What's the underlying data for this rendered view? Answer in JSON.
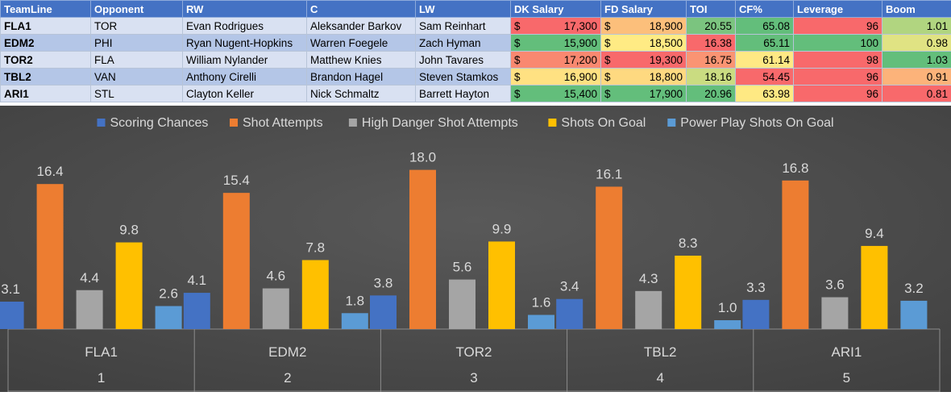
{
  "table": {
    "headers": [
      "TeamLine",
      "Opponent",
      "RW",
      "C",
      "LW",
      "DK Salary",
      "FD Salary",
      "TOI",
      "CF%",
      "Leverage",
      "Boom"
    ],
    "currency_symbol": "$",
    "rows": [
      {
        "teamline": "FLA1",
        "opponent": "TOR",
        "rw": "Evan Rodrigues",
        "c": "Aleksander Barkov",
        "lw": "Sam Reinhart",
        "dk": "17,300",
        "fd": "18,900",
        "toi": "20.55",
        "cf": "65.08",
        "leverage": "96",
        "boom": "1.01"
      },
      {
        "teamline": "EDM2",
        "opponent": "PHI",
        "rw": "Ryan Nugent-Hopkins",
        "c": "Warren Foegele",
        "lw": "Zach Hyman",
        "dk": "15,900",
        "fd": "18,500",
        "toi": "16.38",
        "cf": "65.11",
        "leverage": "100",
        "boom": "0.98"
      },
      {
        "teamline": "TOR2",
        "opponent": "FLA",
        "rw": "William Nylander",
        "c": "Matthew Knies",
        "lw": "John Tavares",
        "dk": "17,200",
        "fd": "19,300",
        "toi": "16.75",
        "cf": "61.14",
        "leverage": "98",
        "boom": "1.03"
      },
      {
        "teamline": "TBL2",
        "opponent": "VAN",
        "rw": "Anthony Cirelli",
        "c": "Brandon Hagel",
        "lw": "Steven Stamkos",
        "dk": "16,900",
        "fd": "18,800",
        "toi": "18.16",
        "cf": "54.45",
        "leverage": "96",
        "boom": "0.91"
      },
      {
        "teamline": "ARI1",
        "opponent": "STL",
        "rw": "Clayton Keller",
        "c": "Nick Schmaltz",
        "lw": "Barrett Hayton",
        "dk": "15,400",
        "fd": "17,900",
        "toi": "20.96",
        "cf": "63.98",
        "leverage": "96",
        "boom": "0.81"
      }
    ],
    "cell_colors": [
      {
        "dk": "#f8696b",
        "fd": "#fcbf7b",
        "toi": "#7bc47f",
        "cf": "#63be7b",
        "leverage": "#f8696b",
        "boom": "#b1d580"
      },
      {
        "dk": "#63be7b",
        "fd": "#ffeb84",
        "toi": "#f8696b",
        "cf": "#63be7b",
        "leverage": "#63be7b",
        "boom": "#e0e383"
      },
      {
        "dk": "#f98870",
        "fd": "#f8696b",
        "toi": "#fa9473",
        "cf": "#ffe884",
        "leverage": "#f8696b",
        "boom": "#63be7b"
      },
      {
        "dk": "#ffe182",
        "fd": "#fed980",
        "toi": "#cadc81",
        "cf": "#f8696b",
        "leverage": "#f8696b",
        "boom": "#fcb37a"
      },
      {
        "dk": "#63be7b",
        "fd": "#63be7b",
        "toi": "#63be7b",
        "cf": "#fee983",
        "leverage": "#f8696b",
        "boom": "#f8696b"
      }
    ]
  },
  "chart_data": {
    "type": "bar",
    "categories": [
      {
        "label": "FLA1",
        "rank": "1"
      },
      {
        "label": "EDM2",
        "rank": "2"
      },
      {
        "label": "TOR2",
        "rank": "3"
      },
      {
        "label": "TBL2",
        "rank": "4"
      },
      {
        "label": "ARI1",
        "rank": "5"
      }
    ],
    "series": [
      {
        "name": "Scoring Chances",
        "color": "#4472c4",
        "values": [
          3.1,
          4.1,
          3.8,
          3.4,
          3.3
        ]
      },
      {
        "name": "Shot Attempts",
        "color": "#ed7d31",
        "values": [
          16.4,
          15.4,
          18.0,
          16.1,
          16.8
        ]
      },
      {
        "name": "High Danger Shot Attempts",
        "color": "#a5a5a5",
        "values": [
          4.4,
          4.6,
          5.6,
          4.3,
          3.6
        ]
      },
      {
        "name": "Shots On Goal",
        "color": "#ffc000",
        "values": [
          9.8,
          7.8,
          9.9,
          8.3,
          9.4
        ]
      },
      {
        "name": "Power Play Shots On Goal",
        "color": "#5b9bd5",
        "values": [
          2.6,
          1.8,
          1.6,
          1.0,
          3.2
        ]
      }
    ],
    "ylim": [
      0,
      20
    ],
    "legend_position": "top",
    "grid": false,
    "data_labels": true,
    "label_decimals": 1,
    "background": "#404040"
  }
}
